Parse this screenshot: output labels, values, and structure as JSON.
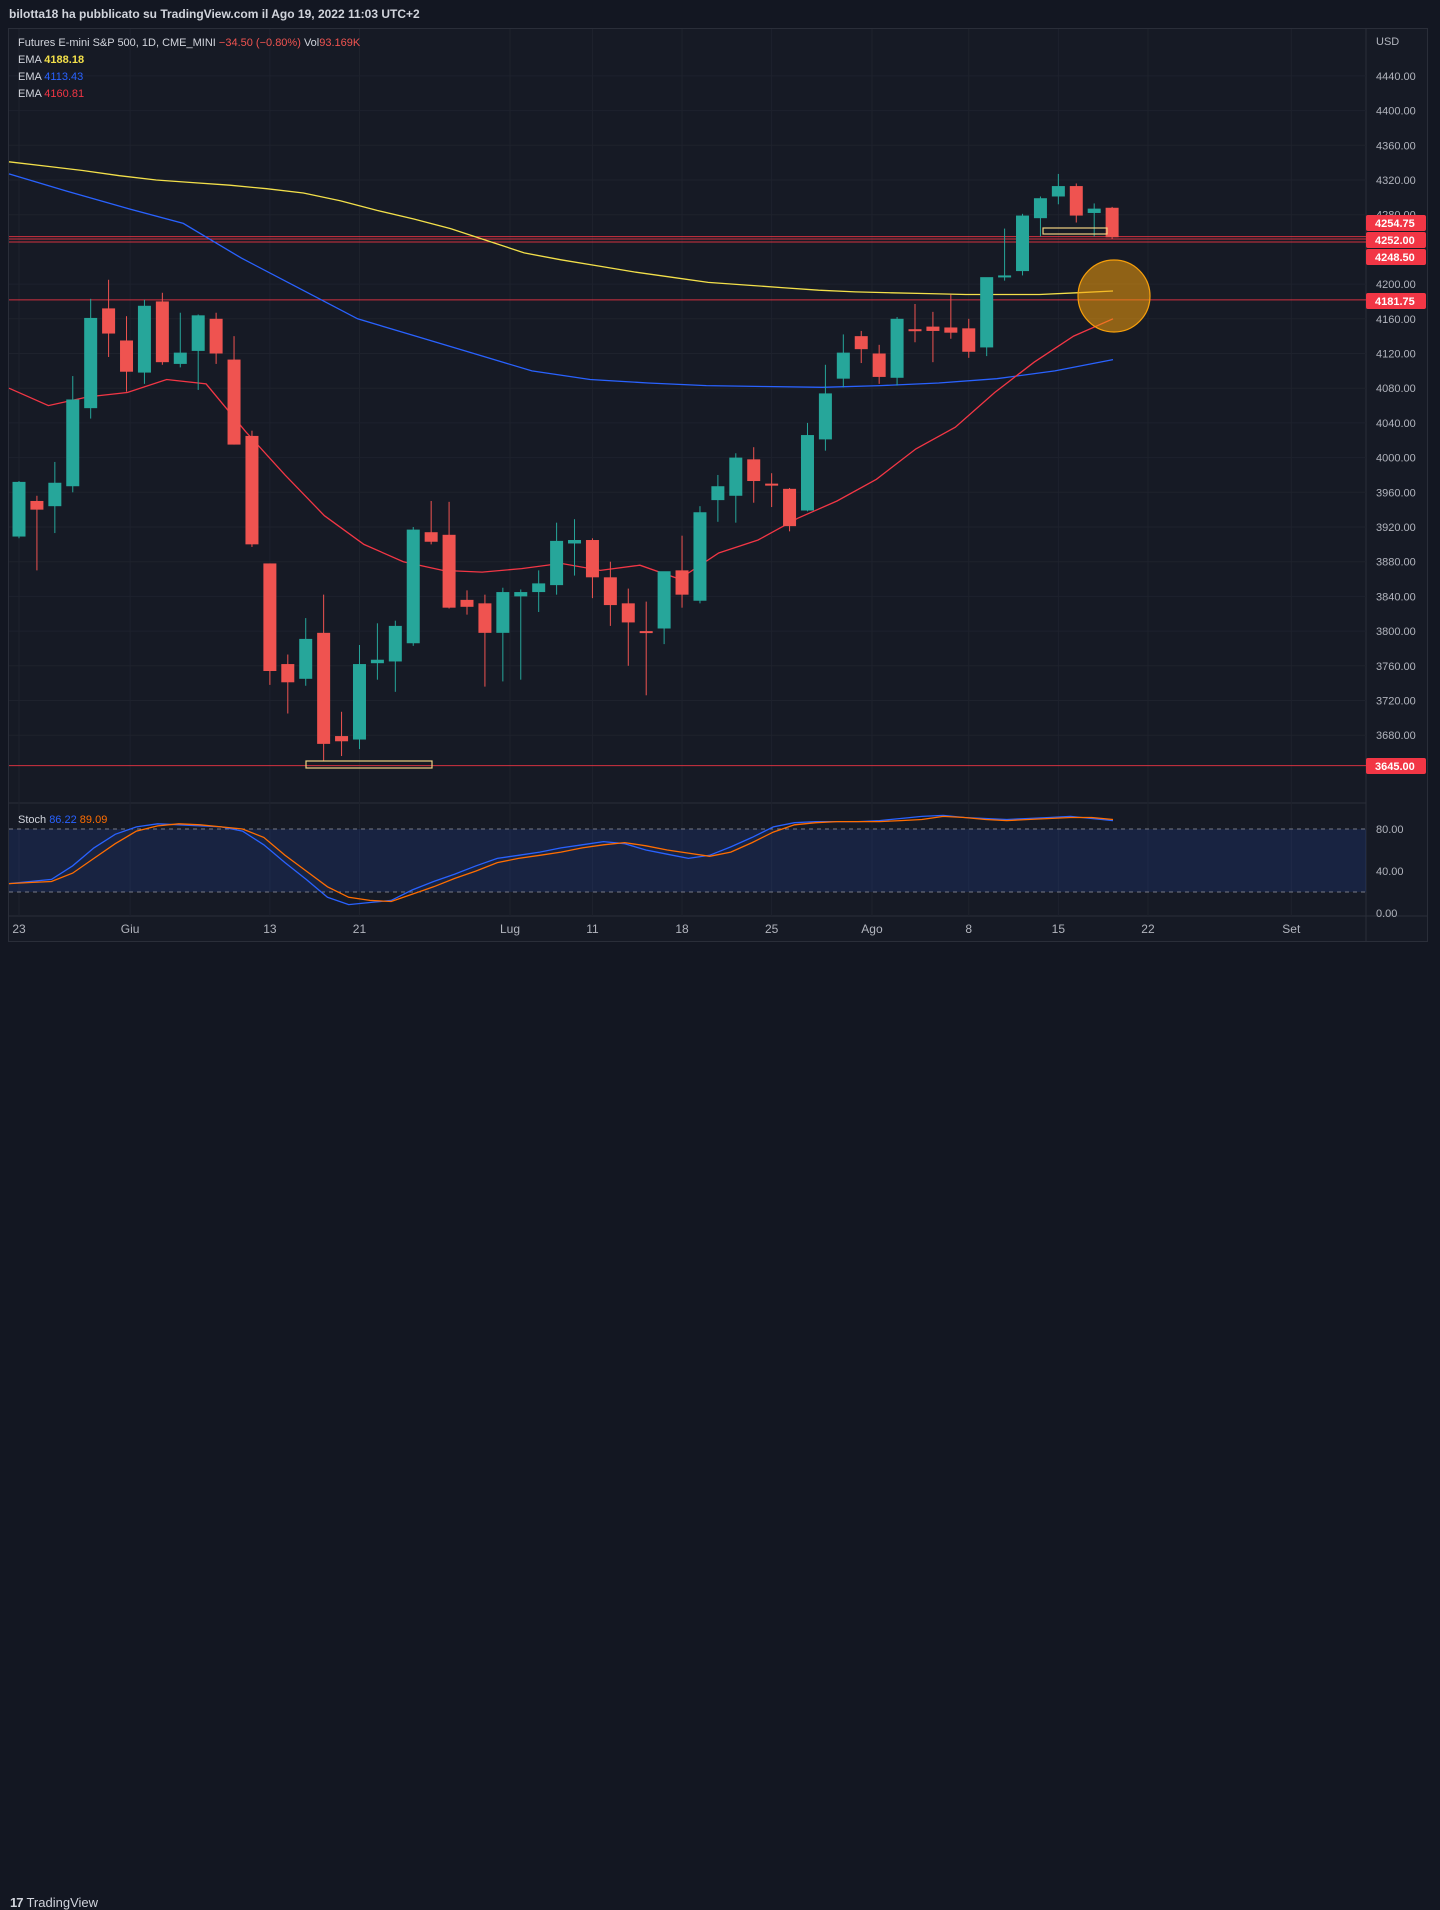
{
  "header": {
    "publisher_text": "bilotta18 ha pubblicato su TradingView.com il Ago 19, 2022 11:03 UTC+2"
  },
  "legend": {
    "symbol": "Futures E-mini S&P 500, 1D, CME_MINI",
    "change": "−34.50 (−0.80%)",
    "vol_label": "Vol",
    "vol_value": "93.169K",
    "ema": [
      {
        "label": "EMA",
        "value": "4188.18",
        "color": "#f3e04a"
      },
      {
        "label": "EMA",
        "value": "4113.43",
        "color": "#2962ff"
      },
      {
        "label": "EMA",
        "value": "4160.81",
        "color": "#f23645"
      }
    ]
  },
  "footer": {
    "brand": "TradingView",
    "logo_icon": "tradingview-logo-icon"
  },
  "chart_data": [
    {
      "type": "candlestick",
      "title": "Futures E-mini S&P 500, 1D, CME_MINI",
      "currency": "USD",
      "ylim": [
        3620,
        4480
      ],
      "y_ticks": [
        4440,
        4400,
        4360,
        4320,
        4280,
        4200,
        4160,
        4120,
        4080,
        4040,
        4000,
        3960,
        3920,
        3880,
        3840,
        3800,
        3760,
        3720,
        3680
      ],
      "y_tick_labels": [
        "4440.00",
        "4400.00",
        "4360.00",
        "4320.00",
        "4280.00",
        "4200.00",
        "4160.00",
        "4120.00",
        "4080.00",
        "4040.00",
        "4000.00",
        "3960.00",
        "3920.00",
        "3880.00",
        "3840.00",
        "3800.00",
        "3760.00",
        "3720.00",
        "3680.00"
      ],
      "x_tick_labels": [
        "23",
        "Giu",
        "13",
        "21",
        "Lug",
        "11",
        "18",
        "25",
        "Ago",
        "8",
        "15",
        "22",
        "Set"
      ],
      "x_tick_index": [
        0,
        6.2,
        14,
        19,
        27.4,
        32,
        37,
        42,
        47.6,
        53,
        58,
        63,
        71
      ],
      "colors": {
        "up": "#26a69a",
        "down": "#ef5350"
      },
      "candles": [
        {
          "o": 3909,
          "h": 3973,
          "l": 3907,
          "c": 3972
        },
        {
          "o": 3950,
          "h": 3956,
          "l": 3870,
          "c": 3940
        },
        {
          "o": 3944,
          "h": 3995,
          "l": 3913,
          "c": 3971
        },
        {
          "o": 3967,
          "h": 4094,
          "l": 3960,
          "c": 4067
        },
        {
          "o": 4057,
          "h": 4183,
          "l": 4045,
          "c": 4161
        },
        {
          "o": 4172,
          "h": 4205,
          "l": 4116,
          "c": 4143
        },
        {
          "o": 4135,
          "h": 4163,
          "l": 4076,
          "c": 4099
        },
        {
          "o": 4098,
          "h": 4182,
          "l": 4085,
          "c": 4175
        },
        {
          "o": 4180,
          "h": 4190,
          "l": 4107,
          "c": 4110
        },
        {
          "o": 4108,
          "h": 4167,
          "l": 4104,
          "c": 4121
        },
        {
          "o": 4123,
          "h": 4165,
          "l": 4078,
          "c": 4164
        },
        {
          "o": 4160,
          "h": 4167,
          "l": 4108,
          "c": 4120
        },
        {
          "o": 4113,
          "h": 4140,
          "l": 4015,
          "c": 4015
        },
        {
          "o": 4025,
          "h": 4031,
          "l": 3897,
          "c": 3900
        },
        {
          "o": 3878,
          "h": 3878,
          "l": 3738,
          "c": 3754
        },
        {
          "o": 3762,
          "h": 3773,
          "l": 3705,
          "c": 3741
        },
        {
          "o": 3745,
          "h": 3815,
          "l": 3737,
          "c": 3791
        },
        {
          "o": 3798,
          "h": 3842,
          "l": 3650,
          "c": 3670
        },
        {
          "o": 3679,
          "h": 3707,
          "l": 3656,
          "c": 3673
        },
        {
          "o": 3675,
          "h": 3784,
          "l": 3664,
          "c": 3762
        },
        {
          "o": 3763,
          "h": 3809,
          "l": 3744,
          "c": 3767
        },
        {
          "o": 3765,
          "h": 3812,
          "l": 3730,
          "c": 3806
        },
        {
          "o": 3786,
          "h": 3920,
          "l": 3783,
          "c": 3917
        },
        {
          "o": 3914,
          "h": 3950,
          "l": 3900,
          "c": 3903
        },
        {
          "o": 3911,
          "h": 3949,
          "l": 3826,
          "c": 3827
        },
        {
          "o": 3836,
          "h": 3847,
          "l": 3819,
          "c": 3828
        },
        {
          "o": 3832,
          "h": 3842,
          "l": 3736,
          "c": 3798
        },
        {
          "o": 3798,
          "h": 3850,
          "l": 3742,
          "c": 3845
        },
        {
          "o": 3840,
          "h": 3848,
          "l": 3744,
          "c": 3845
        },
        {
          "o": 3845,
          "h": 3870,
          "l": 3822,
          "c": 3855
        },
        {
          "o": 3853,
          "h": 3925,
          "l": 3842,
          "c": 3904
        },
        {
          "o": 3901,
          "h": 3929,
          "l": 3864,
          "c": 3905
        },
        {
          "o": 3905,
          "h": 3907,
          "l": 3838,
          "c": 3862
        },
        {
          "o": 3862,
          "h": 3880,
          "l": 3806,
          "c": 3830
        },
        {
          "o": 3832,
          "h": 3849,
          "l": 3760,
          "c": 3810
        },
        {
          "o": 3800,
          "h": 3834,
          "l": 3726,
          "c": 3799
        },
        {
          "o": 3803,
          "h": 3864,
          "l": 3785,
          "c": 3869
        },
        {
          "o": 3870,
          "h": 3910,
          "l": 3827,
          "c": 3842
        },
        {
          "o": 3835,
          "h": 3944,
          "l": 3832,
          "c": 3937
        },
        {
          "o": 3951,
          "h": 3980,
          "l": 3926,
          "c": 3967
        },
        {
          "o": 3956,
          "h": 4005,
          "l": 3925,
          "c": 4000
        },
        {
          "o": 3998,
          "h": 4012,
          "l": 3948,
          "c": 3973
        },
        {
          "o": 3970,
          "h": 3982,
          "l": 3943,
          "c": 3969
        },
        {
          "o": 3964,
          "h": 3965,
          "l": 3915,
          "c": 3921
        },
        {
          "o": 3939,
          "h": 4040,
          "l": 3938,
          "c": 4026
        },
        {
          "o": 4021,
          "h": 4107,
          "l": 4008,
          "c": 4074
        },
        {
          "o": 4091,
          "h": 4142,
          "l": 4081,
          "c": 4121
        },
        {
          "o": 4140,
          "h": 4146,
          "l": 4109,
          "c": 4125
        },
        {
          "o": 4120,
          "h": 4130,
          "l": 4085,
          "c": 4093
        },
        {
          "o": 4092,
          "h": 4162,
          "l": 4083,
          "c": 4160
        },
        {
          "o": 4148,
          "h": 4177,
          "l": 4133,
          "c": 4147
        },
        {
          "o": 4151,
          "h": 4168,
          "l": 4110,
          "c": 4146
        },
        {
          "o": 4150,
          "h": 4188,
          "l": 4137,
          "c": 4144
        },
        {
          "o": 4149,
          "h": 4160,
          "l": 4115,
          "c": 4122
        },
        {
          "o": 4127,
          "h": 4200,
          "l": 4117,
          "c": 4208
        },
        {
          "o": 4208,
          "h": 4264,
          "l": 4204,
          "c": 4210
        },
        {
          "o": 4215,
          "h": 4281,
          "l": 4210,
          "c": 4279
        },
        {
          "o": 4276,
          "h": 4301,
          "l": 4255,
          "c": 4299
        },
        {
          "o": 4301,
          "h": 4327,
          "l": 4292,
          "c": 4313
        },
        {
          "o": 4313,
          "h": 4316,
          "l": 4271,
          "c": 4279
        },
        {
          "o": 4282,
          "h": 4293,
          "l": 4255,
          "c": 4287
        },
        {
          "o": 4288,
          "h": 4289,
          "l": 4252,
          "c": 4254
        }
      ],
      "ema_yellow": [
        4341,
        4336,
        4331,
        4325,
        4320,
        4317,
        4314,
        4310,
        4305,
        4296,
        4285,
        4275,
        4264,
        4250,
        4236,
        4228,
        4221,
        4214,
        4208,
        4202,
        4199,
        4196,
        4193,
        4191,
        4190,
        4189,
        4188,
        4188,
        4188,
        4190,
        4192
      ],
      "ema_blue": [
        4327,
        4307,
        4288,
        4270,
        4230,
        4195,
        4160,
        4140,
        4120,
        4100,
        4090,
        4086,
        4083,
        4082,
        4081,
        4083,
        4086,
        4091,
        4100,
        4113
      ],
      "ema_red": [
        4080,
        4060,
        4070,
        4075,
        4090,
        4085,
        4030,
        3980,
        3933,
        3900,
        3880,
        3870,
        3868,
        3872,
        3878,
        3870,
        3876,
        3860,
        3890,
        3905,
        3930,
        3950,
        3975,
        4010,
        4035,
        4075,
        4110,
        4140,
        4160
      ],
      "price_lines": [
        {
          "value": 4254.75,
          "label": "4254.75"
        },
        {
          "value": 4252.0,
          "label": "4252.00"
        },
        {
          "value": 4248.5,
          "label": "4248.50"
        },
        {
          "value": 4181.75,
          "label": "4181.75"
        },
        {
          "value": 3645.0,
          "label": "3645.00"
        }
      ]
    },
    {
      "type": "line",
      "title": "Stoch",
      "ylim": [
        0,
        100
      ],
      "y_ticks": [
        80,
        40,
        0
      ],
      "y_tick_labels": [
        "80.00",
        "40.00",
        "0.00"
      ],
      "legend": [
        {
          "name": "Stoch",
          "value": "86.22",
          "color": "#2962ff"
        },
        {
          "name": "",
          "value": "89.09",
          "color": "#ff6d00"
        }
      ],
      "k": [
        28,
        30,
        32,
        45,
        62,
        75,
        82,
        85,
        84,
        83,
        82,
        78,
        65,
        48,
        32,
        15,
        8,
        10,
        12,
        22,
        30,
        37,
        45,
        52,
        55,
        58,
        62,
        65,
        68,
        66,
        60,
        56,
        52,
        55,
        63,
        72,
        82,
        86,
        87,
        87,
        87,
        88,
        90,
        92,
        93,
        91,
        90,
        89,
        90,
        91,
        92,
        90,
        88
      ],
      "d": [
        28,
        29,
        30,
        38,
        52,
        66,
        78,
        83,
        85,
        84,
        82,
        80,
        72,
        55,
        40,
        25,
        15,
        12,
        11,
        18,
        25,
        33,
        40,
        48,
        52,
        55,
        58,
        62,
        65,
        67,
        64,
        60,
        57,
        54,
        58,
        67,
        77,
        84,
        86,
        87,
        87,
        87,
        88,
        89,
        92,
        91,
        89,
        88,
        89,
        90,
        91,
        91,
        89
      ]
    }
  ]
}
